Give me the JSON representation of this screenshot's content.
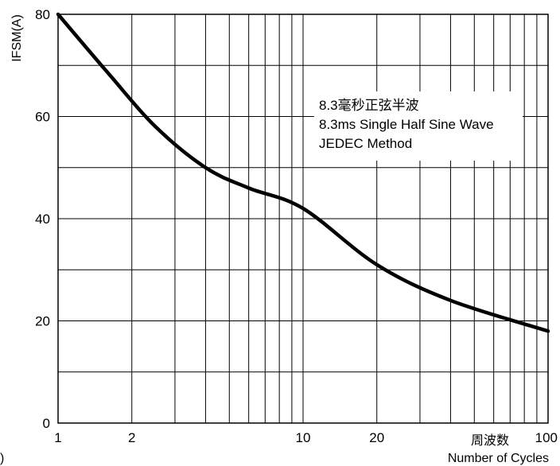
{
  "chart_data": {
    "type": "line",
    "xscale": "log",
    "xlim": [
      1,
      100
    ],
    "ylim": [
      0,
      80
    ],
    "xticks": [
      1,
      2,
      10,
      20,
      100
    ],
    "yticks": [
      0,
      20,
      40,
      60,
      80
    ],
    "xtick_labels": [
      "1",
      "2",
      "10",
      "20",
      "100"
    ],
    "ytick_labels": [
      "0",
      "20",
      "40",
      "60",
      "80"
    ],
    "ylabel": "IFSM(A)",
    "xlabel_cn": "周波数",
    "xlabel": "Number of Cycles",
    "grid": true,
    "annotations": [
      "8.3毫秒正弦半波",
      "8.3ms Single Half Sine Wave",
      "JEDEC Method"
    ],
    "corner_mark": ")",
    "series": [
      {
        "x": [
          1,
          1.6,
          2.5,
          4,
          6,
          10,
          20,
          40,
          100
        ],
        "y": [
          80,
          68.5,
          58,
          50,
          46,
          42,
          31,
          24,
          18
        ]
      }
    ]
  }
}
